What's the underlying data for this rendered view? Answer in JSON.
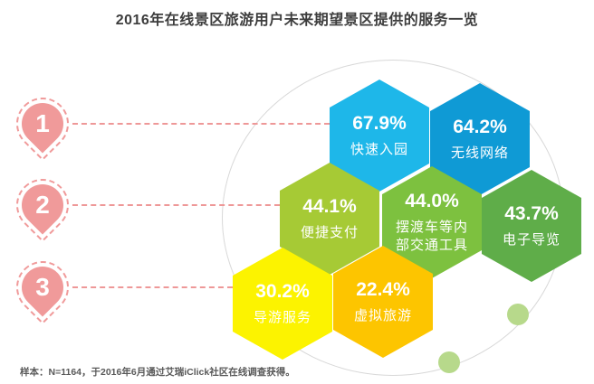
{
  "title": "2016年在线景区旅游用户未来期望景区提供的服务一览",
  "footnote": "样本：N=1164，于2016年6月通过艾瑞iClick社区在线调查获得。",
  "ranks": [
    {
      "number": "1"
    },
    {
      "number": "2"
    },
    {
      "number": "3"
    }
  ],
  "palette": {
    "pin": "#f09a9a",
    "connector_line": "#ee9898",
    "background_circle": "#d8d8d8",
    "decor_dot": "#b7d98b",
    "title_text": "#3d3d3d",
    "footnote_text": "#595959"
  },
  "chart_data": {
    "type": "hexagon-infographic",
    "title": "2016年在线景区旅游用户未来期望景区提供的服务一览",
    "unit": "%",
    "legend_position": "none",
    "series": [
      {
        "label": "快速入园",
        "value": 67.9,
        "value_label": "67.9%",
        "tier": 1,
        "color": "#1eb7e9"
      },
      {
        "label": "无线网络",
        "value": 64.2,
        "value_label": "64.2%",
        "tier": 1,
        "color": "#0f9ad5"
      },
      {
        "label": "便捷支付",
        "value": 44.1,
        "value_label": "44.1%",
        "tier": 2,
        "color": "#a6ca35"
      },
      {
        "label": "摆渡车等内部交通工具",
        "value": 44.0,
        "value_label": "44.0%",
        "tier": 2,
        "color": "#7dc13f"
      },
      {
        "label": "电子导览",
        "value": 43.7,
        "value_label": "43.7%",
        "tier": 2,
        "color": "#5fad49"
      },
      {
        "label": "导游服务",
        "value": 30.2,
        "value_label": "30.2%",
        "tier": 3,
        "color": "#fcf300"
      },
      {
        "label": "虚拟旅游",
        "value": 22.4,
        "value_label": "22.4%",
        "tier": 3,
        "color": "#fdc500"
      }
    ],
    "footnote": "样本：N=1164，于2016年6月通过艾瑞iClick社区在线调查获得。"
  }
}
